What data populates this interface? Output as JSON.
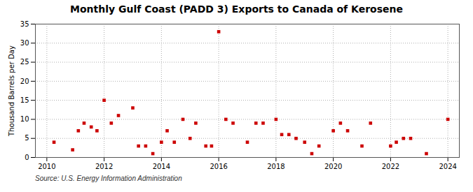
{
  "chart_data": {
    "type": "scatter",
    "title": "Monthly Gulf Coast (PADD 3) Exports to Canada of Kerosene",
    "ylabel": "Thousand Barrels per Day",
    "source": "Source: U.S. Energy Information Administration",
    "x": [
      2010.25,
      2010.9,
      2011.1,
      2011.3,
      2011.55,
      2011.75,
      2012.0,
      2012.25,
      2012.5,
      2013.0,
      2013.2,
      2013.45,
      2013.7,
      2014.0,
      2014.2,
      2014.45,
      2014.75,
      2015.0,
      2015.2,
      2015.55,
      2015.75,
      2016.0,
      2016.25,
      2016.5,
      2017.0,
      2017.3,
      2017.55,
      2018.0,
      2018.2,
      2018.45,
      2018.7,
      2019.0,
      2019.25,
      2019.5,
      2020.0,
      2020.25,
      2020.5,
      2021.0,
      2021.3,
      2022.0,
      2022.2,
      2022.45,
      2022.7,
      2023.25,
      2024.0
    ],
    "values": [
      4,
      2,
      7,
      9,
      8,
      7,
      15,
      9,
      11,
      13,
      3,
      3,
      1,
      4,
      7,
      4,
      10,
      5,
      9,
      3,
      3,
      33,
      10,
      9,
      4,
      9,
      9,
      10,
      6,
      6,
      5,
      4,
      1,
      3,
      7,
      9,
      7,
      3,
      9,
      3,
      4,
      5,
      5,
      1,
      10
    ],
    "color": "#cc0000",
    "marker": "square",
    "xlim": [
      2009.6,
      2024.4
    ],
    "ylim": [
      0,
      35
    ],
    "xticks": [
      2010,
      2012,
      2014,
      2016,
      2018,
      2020,
      2022,
      2024
    ],
    "yticks": [
      0,
      5,
      10,
      15,
      20,
      25,
      30,
      35
    ],
    "grid": true
  }
}
